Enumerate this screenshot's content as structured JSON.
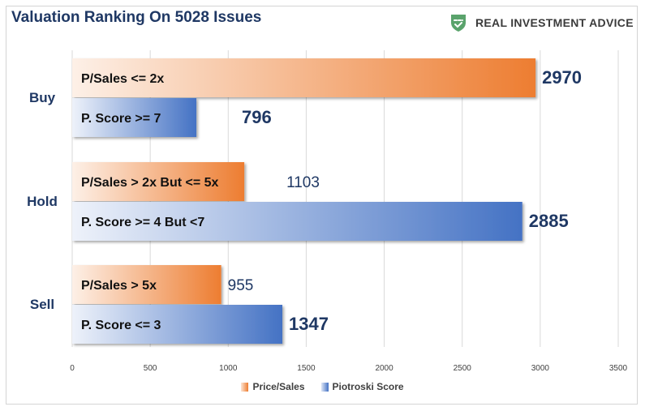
{
  "header": {
    "title": "Valuation Ranking On 5028 Issues",
    "logo_text": "REAL INVESTMENT ADVICE",
    "logo_icon": "shield-check-icon"
  },
  "colors": {
    "title": "#1f3864",
    "price_sales_dark": "#ed7d31",
    "price_sales_light": "#fdf0e7",
    "piotroski_dark": "#4472c4",
    "piotroski_light": "#eef2fa",
    "logo_green": "#5aa36c"
  },
  "chart_data": {
    "type": "bar",
    "orientation": "horizontal",
    "title": "Valuation Ranking On 5028 Issues",
    "categories": [
      "Buy",
      "Hold",
      "Sell"
    ],
    "series": [
      {
        "name": "Price/Sales",
        "values": [
          2970,
          1103,
          955
        ],
        "bar_labels": [
          "P/Sales <= 2x",
          "P/Sales > 2x But <= 5x",
          "P/Sales > 5x"
        ]
      },
      {
        "name": "Piotroski Score",
        "values": [
          796,
          2885,
          1347
        ],
        "bar_labels": [
          "P. Score >= 7",
          "P. Score >= 4 But <7",
          "P. Score <= 3"
        ]
      }
    ],
    "xlim": [
      0,
      3500
    ],
    "x_ticks": [
      0,
      500,
      1000,
      1500,
      2000,
      2500,
      3000,
      3500
    ],
    "grid": true,
    "legend_position": "bottom"
  }
}
